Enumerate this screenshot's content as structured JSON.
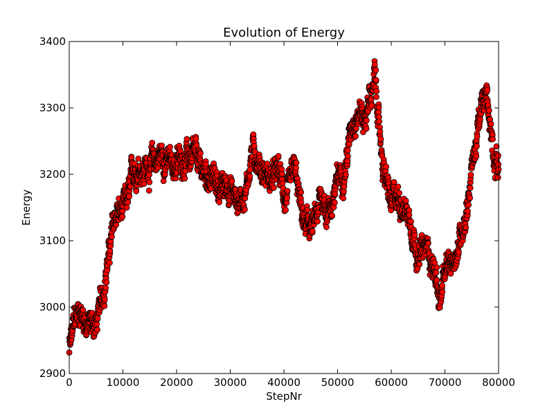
{
  "chart_data": {
    "type": "scatter",
    "title": "Evolution of Energy",
    "xlabel": "StepNr",
    "ylabel": "Energy",
    "xlim": [
      0,
      80000
    ],
    "ylim": [
      2900,
      3400
    ],
    "xticks": [
      0,
      10000,
      20000,
      30000,
      40000,
      50000,
      60000,
      70000,
      80000
    ],
    "yticks": [
      2900,
      3000,
      3100,
      3200,
      3300,
      3400
    ],
    "grid": false,
    "marker_color": "#ff0000",
    "marker_edge_color": "#000000",
    "trend": [
      [
        0,
        2935
      ],
      [
        1000,
        2970
      ],
      [
        2000,
        2995
      ],
      [
        3000,
        2985
      ],
      [
        4000,
        2975
      ],
      [
        5000,
        2975
      ],
      [
        6000,
        3000
      ],
      [
        7000,
        3070
      ],
      [
        8000,
        3110
      ],
      [
        9000,
        3140
      ],
      [
        10000,
        3135
      ],
      [
        11000,
        3150
      ],
      [
        12000,
        3190
      ],
      [
        13000,
        3225
      ],
      [
        14000,
        3215
      ],
      [
        15000,
        3220
      ],
      [
        16000,
        3215
      ],
      [
        17000,
        3230
      ],
      [
        18000,
        3225
      ],
      [
        19000,
        3210
      ],
      [
        20000,
        3215
      ],
      [
        21000,
        3225
      ],
      [
        22000,
        3230
      ],
      [
        23000,
        3215
      ],
      [
        24000,
        3200
      ],
      [
        25000,
        3195
      ],
      [
        26000,
        3200
      ],
      [
        27000,
        3190
      ],
      [
        28000,
        3180
      ],
      [
        29000,
        3175
      ],
      [
        30000,
        3190
      ],
      [
        31000,
        3160
      ],
      [
        32000,
        3165
      ],
      [
        33000,
        3190
      ],
      [
        34000,
        3240
      ],
      [
        35000,
        3230
      ],
      [
        36000,
        3215
      ],
      [
        37000,
        3200
      ],
      [
        38000,
        3190
      ],
      [
        39000,
        3195
      ],
      [
        40000,
        3165
      ],
      [
        41000,
        3160
      ],
      [
        42000,
        3185
      ],
      [
        43000,
        3140
      ],
      [
        44000,
        3110
      ],
      [
        45000,
        3115
      ],
      [
        46000,
        3120
      ],
      [
        47000,
        3160
      ],
      [
        48000,
        3150
      ],
      [
        49000,
        3165
      ],
      [
        50000,
        3185
      ],
      [
        51000,
        3210
      ],
      [
        52000,
        3250
      ],
      [
        53000,
        3300
      ],
      [
        54000,
        3310
      ],
      [
        55000,
        3290
      ],
      [
        56000,
        3320
      ],
      [
        57000,
        3340
      ],
      [
        58000,
        3240
      ],
      [
        59000,
        3190
      ],
      [
        60000,
        3145
      ],
      [
        61000,
        3155
      ],
      [
        62000,
        3165
      ],
      [
        63000,
        3150
      ],
      [
        64000,
        3130
      ],
      [
        65000,
        3095
      ],
      [
        66000,
        3080
      ],
      [
        67000,
        3085
      ],
      [
        68000,
        3060
      ],
      [
        69000,
        3015
      ],
      [
        70000,
        3040
      ],
      [
        71000,
        3055
      ],
      [
        72000,
        3085
      ],
      [
        73000,
        3115
      ],
      [
        74000,
        3160
      ],
      [
        75000,
        3215
      ],
      [
        76000,
        3260
      ],
      [
        77000,
        3300
      ],
      [
        78000,
        3300
      ],
      [
        79000,
        3245
      ],
      [
        80000,
        3225
      ]
    ],
    "spread": 28
  }
}
